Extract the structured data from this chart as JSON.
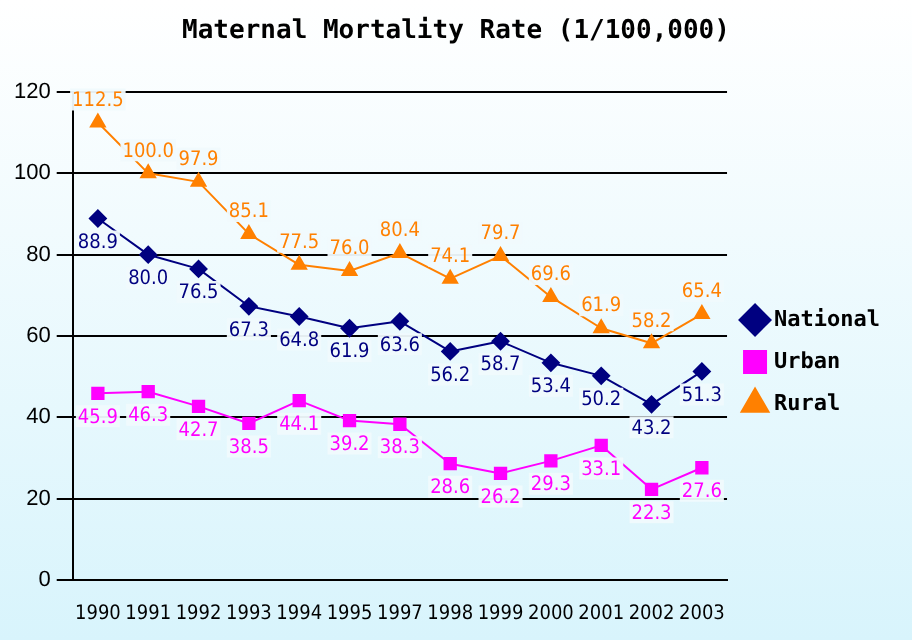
{
  "chart_data": {
    "type": "line",
    "title": "Maternal Mortality Rate (1/100,000)",
    "categories": [
      "1990",
      "1991",
      "1992",
      "1993",
      "1994",
      "1995",
      "1997",
      "1998",
      "1999",
      "2000",
      "2001",
      "2002",
      "2003"
    ],
    "series": [
      {
        "name": "National",
        "color": "#000080",
        "marker": "diamond",
        "values": [
          88.9,
          80.0,
          76.5,
          67.3,
          64.8,
          61.9,
          63.6,
          56.2,
          58.7,
          53.4,
          50.2,
          43.2,
          51.3
        ],
        "value_labels": [
          "88.9",
          "80.0",
          "76.5",
          "67.3",
          "64.8",
          "61.9",
          "63.6",
          "56.2",
          "58.7",
          "53.4",
          "50.2",
          "43.2",
          "51.3"
        ]
      },
      {
        "name": "Urban",
        "color": "#ff00ff",
        "marker": "square",
        "values": [
          45.9,
          46.3,
          42.7,
          38.5,
          44.1,
          39.2,
          38.3,
          28.6,
          26.2,
          29.3,
          33.1,
          22.3,
          27.6
        ],
        "value_labels": [
          "45.9",
          "46.3",
          "42.7",
          "38.5",
          "44.1",
          "39.2",
          "38.3",
          "28.6",
          "26.2",
          "29.3",
          "33.1",
          "22.3",
          "27.6"
        ]
      },
      {
        "name": "Rural",
        "color": "#ff8000",
        "marker": "triangle",
        "values": [
          112.5,
          100.0,
          97.9,
          85.1,
          77.5,
          76.0,
          80.4,
          74.1,
          79.7,
          69.6,
          61.9,
          58.2,
          65.4
        ],
        "value_labels": [
          "112.5",
          "100.0",
          "97.9",
          "85.1",
          "77.5",
          "76.0",
          "80.4",
          "74.1",
          "79.7",
          "69.6",
          "61.9",
          "58.2",
          "65.4"
        ]
      }
    ],
    "ylim": [
      0,
      120
    ],
    "yticks": [
      0,
      20,
      40,
      60,
      80,
      100,
      120
    ],
    "grid": "y",
    "legend": "right"
  }
}
